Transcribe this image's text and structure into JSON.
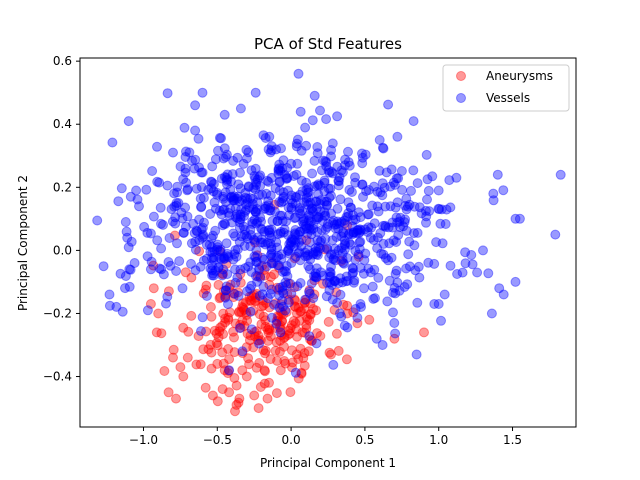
{
  "chart_data": {
    "type": "scatter",
    "title": "PCA of Std Features",
    "xlabel": "Principal Component 1",
    "ylabel": "Principal Component 2",
    "xlim": [
      -1.43,
      1.93
    ],
    "ylim": [
      -0.56,
      0.61
    ],
    "xticks": [
      -1.0,
      -0.5,
      0.0,
      0.5,
      1.0,
      1.5
    ],
    "xtick_labels": [
      "−1.0",
      "−0.5",
      "0.0",
      "0.5",
      "1.0",
      "1.5"
    ],
    "yticks": [
      -0.4,
      -0.2,
      0.0,
      0.2,
      0.4,
      0.6
    ],
    "ytick_labels": [
      "−0.4",
      "−0.2",
      "0.0",
      "0.2",
      "0.4",
      "0.6"
    ],
    "grid": false,
    "legend_position": "top-right",
    "series": [
      {
        "name": "Aneurysms",
        "color": "#ff0000",
        "cluster": {
          "mean": [
            -0.15,
            -0.23
          ],
          "std": [
            0.28,
            0.1
          ],
          "count": 260
        },
        "points": [
          [
            -0.83,
            -0.45
          ],
          [
            -0.78,
            -0.47
          ],
          [
            -0.53,
            -0.46
          ],
          [
            -0.38,
            -0.51
          ],
          [
            -0.37,
            -0.49
          ],
          [
            -0.35,
            -0.47
          ],
          [
            -0.22,
            -0.5
          ],
          [
            -0.25,
            -0.46
          ],
          [
            -0.16,
            -0.47
          ],
          [
            -0.42,
            -0.45
          ],
          [
            -0.91,
            -0.26
          ],
          [
            -0.9,
            -0.2
          ],
          [
            -0.95,
            -0.17
          ],
          [
            -0.93,
            -0.12
          ],
          [
            -0.8,
            -0.34
          ],
          [
            -0.75,
            -0.37
          ],
          [
            -0.73,
            -0.4
          ],
          [
            -0.7,
            -0.34
          ],
          [
            0.9,
            -0.26
          ],
          [
            0.7,
            -0.28
          ],
          [
            0.38,
            -0.2
          ],
          [
            0.53,
            -0.22
          ],
          [
            -0.5,
            -0.36
          ],
          [
            -0.45,
            -0.38
          ],
          [
            -0.3,
            -0.4
          ],
          [
            -0.15,
            -0.42
          ],
          [
            -0.18,
            -0.38
          ],
          [
            -0.07,
            -0.38
          ],
          [
            0.27,
            -0.33
          ],
          [
            0.12,
            -0.32
          ]
        ]
      },
      {
        "name": "Vessels",
        "color": "#0000ff",
        "cluster": {
          "mean": [
            0.0,
            0.07
          ],
          "std": [
            0.5,
            0.14
          ],
          "count": 900
        },
        "points": [
          [
            -1.27,
            -0.05
          ],
          [
            -1.23,
            -0.14
          ],
          [
            -1.1,
            0.41
          ],
          [
            -1.05,
            0.19
          ],
          [
            -1.12,
            0.09
          ],
          [
            -1.11,
            0.04
          ],
          [
            -1.1,
            0.01
          ],
          [
            -1.03,
            0.14
          ],
          [
            -1.06,
            -0.04
          ],
          [
            -0.95,
            -0.06
          ],
          [
            -0.97,
            -0.19
          ],
          [
            -0.88,
            -0.06
          ],
          [
            1.79,
            0.05
          ],
          [
            1.52,
            0.1
          ],
          [
            1.55,
            0.1
          ],
          [
            1.4,
            0.24
          ],
          [
            1.37,
            0.18
          ],
          [
            1.41,
            -0.12
          ],
          [
            1.44,
            -0.14
          ],
          [
            1.52,
            -0.1
          ],
          [
            1.36,
            -0.2
          ],
          [
            1.26,
            -0.07
          ],
          [
            1.3,
            0.0
          ],
          [
            1.12,
            0.23
          ],
          [
            0.85,
            -0.33
          ],
          [
            0.05,
            0.56
          ],
          [
            -0.65,
            0.46
          ],
          [
            -0.65,
            0.38
          ],
          [
            -0.8,
            0.31
          ],
          [
            -0.6,
            0.5
          ],
          [
            -0.45,
            0.43
          ],
          [
            -0.34,
            0.45
          ],
          [
            -0.24,
            0.5
          ],
          [
            0.16,
            0.49
          ],
          [
            0.83,
            0.41
          ],
          [
            0.72,
            0.36
          ],
          [
            0.6,
            0.35
          ],
          [
            0.39,
            0.28
          ],
          [
            -0.42,
            -0.38
          ],
          [
            -0.33,
            -0.32
          ],
          [
            0.58,
            -0.28
          ],
          [
            0.62,
            -0.3
          ],
          [
            0.34,
            -0.21
          ],
          [
            0.47,
            -0.17
          ],
          [
            1.0,
            0.19
          ],
          [
            1.02,
            0.13
          ],
          [
            0.97,
            -0.17
          ],
          [
            1.0,
            -0.17
          ]
        ]
      }
    ]
  }
}
